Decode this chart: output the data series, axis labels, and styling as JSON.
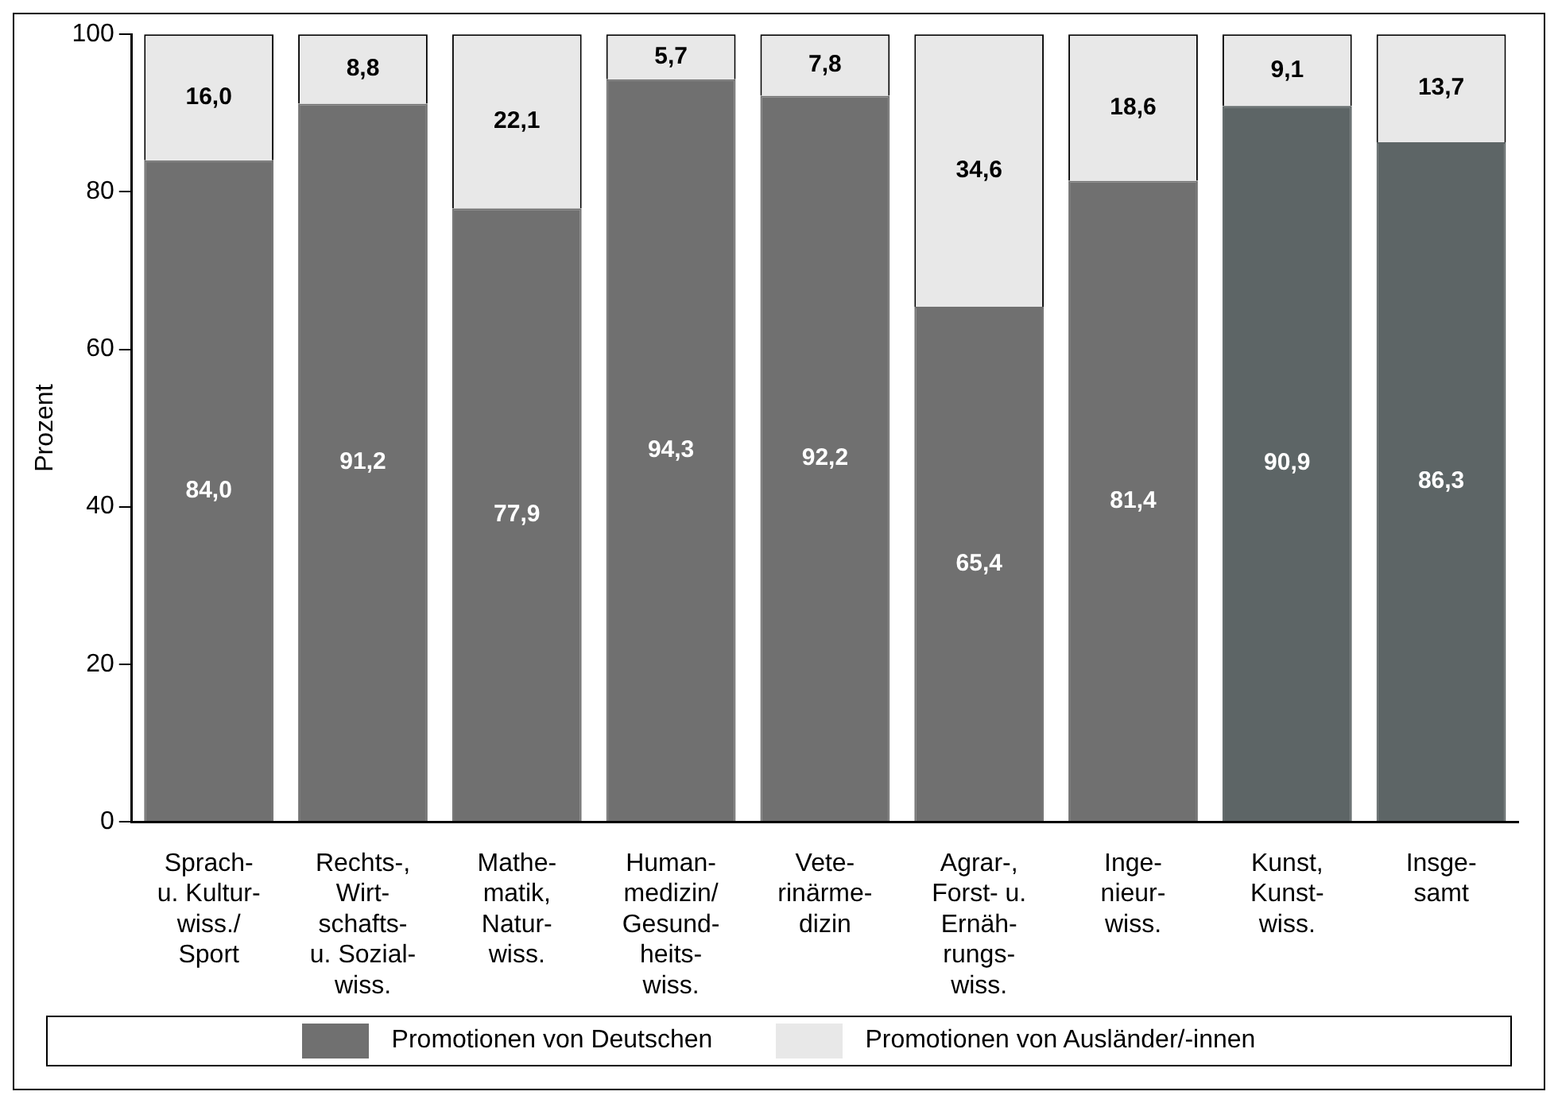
{
  "chart_data": {
    "type": "bar",
    "stacked": true,
    "ylabel": "Prozent",
    "categories": [
      "Sprach-\nu. Kultur-\nwiss./\nSport",
      "Rechts-,\nWirt-\nschafts-\nu. Sozial-\nwiss.",
      "Mathe-\nmatik,\nNatur-\nwiss.",
      "Human-\nmedizin/\nGesund-\nheits-\nwiss.",
      "Vete-\nrinärme-\ndizin",
      "Agrar-,\nForst- u.\nErnäh-\nrungs-\nwiss.",
      "Inge-\nnieur-\nwiss.",
      "Kunst,\nKunst-\nwiss.",
      "Insge-\nsamt"
    ],
    "series": [
      {
        "name": "Promotionen von Deutschen",
        "color": "#707070",
        "colors": [
          "#707070",
          "#707070",
          "#707070",
          "#707070",
          "#707070",
          "#707070",
          "#707070",
          "#5d6566",
          "#5d6566"
        ],
        "values": [
          84.0,
          91.2,
          77.9,
          94.3,
          92.2,
          65.4,
          81.4,
          90.9,
          86.3
        ],
        "value_labels": [
          "84,0",
          "91,2",
          "77,9",
          "94,3",
          "92,2",
          "65,4",
          "81,4",
          "90,9",
          "86,3"
        ]
      },
      {
        "name": "Promotionen von Ausländer/-innen",
        "color": "#e8e8e8",
        "values": [
          16.0,
          8.8,
          22.1,
          5.7,
          7.8,
          34.6,
          18.6,
          9.1,
          13.7
        ],
        "value_labels": [
          "16,0",
          "8,8",
          "22,1",
          "5,7",
          "7,8",
          "34,6",
          "18,6",
          "9,1",
          "13,7"
        ]
      }
    ],
    "ylim": [
      0,
      100
    ],
    "yticks": [
      0,
      20,
      40,
      60,
      80,
      100
    ],
    "grid": false,
    "legend": "bottom"
  }
}
